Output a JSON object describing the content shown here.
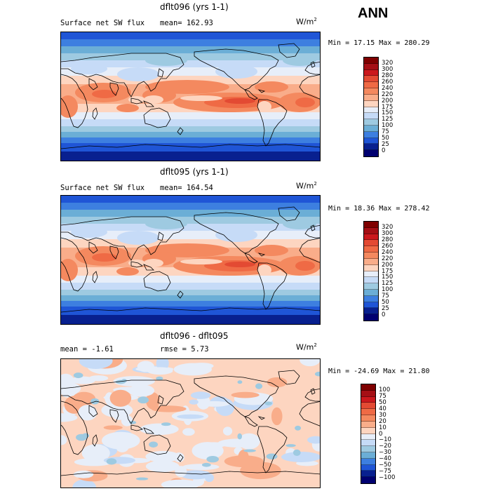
{
  "season": "ANN",
  "panels": [
    {
      "title": "dflt096 (yrs 1-1)",
      "left_label": "Surface net SW flux",
      "stat_label": "mean= 162.93",
      "units_base": "W/m",
      "units_exp": "2",
      "minmax": "Min =  17.15 Max = 280.29",
      "kind": "abs",
      "levels": [
        "320",
        "300",
        "280",
        "260",
        "240",
        "220",
        "200",
        "175",
        "150",
        "125",
        "100",
        "75",
        "50",
        "25",
        "0"
      ]
    },
    {
      "title": "dflt095 (yrs 1-1)",
      "left_label": "Surface net SW flux",
      "stat_label": "mean= 164.54",
      "units_base": "W/m",
      "units_exp": "2",
      "minmax": "Min =  18.36 Max = 278.42",
      "kind": "abs",
      "levels": [
        "320",
        "300",
        "280",
        "260",
        "240",
        "220",
        "200",
        "175",
        "150",
        "125",
        "100",
        "75",
        "50",
        "25",
        "0"
      ]
    },
    {
      "title": "dflt096 - dflt095",
      "left_label": "mean =   -1.61",
      "stat_label": "rmse =    5.73",
      "units_base": "W/m",
      "units_exp": "2",
      "minmax": "Min = -24.69 Max =  21.80",
      "kind": "diff",
      "levels": [
        "100",
        "75",
        "50",
        "40",
        "30",
        "20",
        "10",
        "0",
        "−10",
        "−20",
        "−30",
        "−40",
        "−50",
        "−75",
        "−100"
      ]
    }
  ],
  "colors": {
    "scale": [
      "#7f0000",
      "#a50f15",
      "#cb181d",
      "#e34a33",
      "#ef6a45",
      "#f4895f",
      "#f9ad8a",
      "#fdd5c0",
      "#e7eef9",
      "#c6dbf7",
      "#9ecae1",
      "#6baed6",
      "#3d7fe0",
      "#1f55d6",
      "#08208f",
      "#000070"
    ]
  }
}
